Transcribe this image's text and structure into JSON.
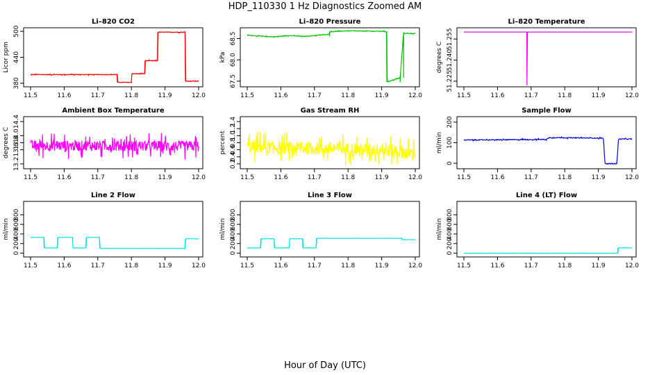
{
  "page": {
    "title": "HDP_110330  1 Hz Diagnostics Zoomed AM",
    "xlabel": "Hour of Day (UTC)"
  },
  "chart_data": [
    {
      "type": "line",
      "title": "Li–820 CO2",
      "ylabel": "Licor ppm",
      "color": "#ff0000",
      "xlim": [
        11.5,
        12.0
      ],
      "ylim": [
        375,
        505
      ],
      "xticks": [
        "11.5",
        "11.6",
        "11.7",
        "11.8",
        "11.9",
        "12.0"
      ],
      "yticks": [
        {
          "v": 380,
          "label": "380"
        },
        {
          "v": 440,
          "label": "440"
        },
        {
          "v": 500,
          "label": "500"
        }
      ],
      "noise": 1.2,
      "x": [
        11.5,
        11.758,
        11.758,
        11.8,
        11.8,
        11.84,
        11.84,
        11.878,
        11.878,
        11.96,
        11.96,
        12.0
      ],
      "y": [
        400,
        400,
        382,
        382,
        402,
        402,
        432,
        432,
        498,
        498,
        385,
        385
      ]
    },
    {
      "type": "line",
      "title": "Li–820 Pressure",
      "ylabel": "kPa",
      "color": "#00c000",
      "xlim": [
        11.5,
        12.0
      ],
      "ylim": [
        67.4,
        68.72
      ],
      "xticks": [
        "11.5",
        "11.6",
        "11.7",
        "11.8",
        "11.9",
        "12.0"
      ],
      "yticks": [
        {
          "v": 67.5,
          "label": "67.5"
        },
        {
          "v": 68.0,
          "label": "68.0"
        },
        {
          "v": 68.5,
          "label": "68.5"
        }
      ],
      "noise": 0.012,
      "x": [
        11.5,
        11.53,
        11.58,
        11.62,
        11.67,
        11.745,
        11.745,
        11.8,
        11.905,
        11.915,
        11.915,
        11.955,
        11.955,
        11.965,
        11.965,
        12.0
      ],
      "y": [
        68.58,
        68.56,
        68.54,
        68.57,
        68.55,
        68.6,
        68.66,
        68.68,
        68.67,
        68.66,
        67.48,
        67.58,
        67.58,
        68.62,
        68.62,
        68.62
      ]
    },
    {
      "type": "line",
      "title": "Li–820 Temperature",
      "ylabel": "degrees C",
      "color": "#ff00ff",
      "xlim": [
        11.5,
        12.0
      ],
      "ylim": [
        51.222,
        51.262
      ],
      "xticks": [
        "11.5",
        "11.6",
        "11.7",
        "11.8",
        "11.9",
        "12.0"
      ],
      "yticks": [
        {
          "v": 51.225,
          "label": "51.225"
        },
        {
          "v": 51.24,
          "label": "51.240"
        },
        {
          "v": 51.255,
          "label": "51.255"
        }
      ],
      "noise": 0,
      "x": [
        11.5,
        11.687,
        11.687,
        11.6875,
        11.6875,
        12.0
      ],
      "y": [
        51.26,
        51.26,
        51.222,
        51.222,
        51.26,
        51.26
      ]
    },
    {
      "type": "line",
      "title": "Ambient Box Temperature",
      "ylabel": "degrees C",
      "color": "#ff00ff",
      "xlim": [
        11.5,
        12.0
      ],
      "ylim": [
        13.1,
        14.5
      ],
      "xticks": [
        "11.5",
        "11.6",
        "11.7",
        "11.8",
        "11.9",
        "12.0"
      ],
      "yticks": [
        {
          "v": 13.2,
          "label": "13.2"
        },
        {
          "v": 13.6,
          "label": "13.6"
        },
        {
          "v": 13.8,
          "label": "13.8"
        },
        {
          "v": 14.0,
          "label": "14.0"
        },
        {
          "v": 14.4,
          "label": "14.4"
        }
      ],
      "noise": 0.25,
      "x": [
        11.5,
        12.0
      ],
      "y": [
        13.72,
        13.7
      ]
    },
    {
      "type": "line",
      "title": "Gas Stream RH",
      "ylabel": "percent",
      "color": "#ffff00",
      "xlim": [
        11.5,
        12.0
      ],
      "ylim": [
        0.1,
        1.5
      ],
      "xticks": [
        "11.5",
        "11.6",
        "11.7",
        "11.8",
        "11.9",
        "12.0"
      ],
      "yticks": [
        {
          "v": 0.2,
          "label": "0.2"
        },
        {
          "v": 0.4,
          "label": "0.4"
        },
        {
          "v": 0.6,
          "label": "0.6"
        },
        {
          "v": 0.8,
          "label": "0.8"
        },
        {
          "v": 1.0,
          "label": "1.0"
        },
        {
          "v": 1.2,
          "label": "1.2"
        },
        {
          "v": 1.4,
          "label": "1.4"
        }
      ],
      "noise": 0.3,
      "x": [
        11.5,
        11.9,
        12.0
      ],
      "y": [
        0.68,
        0.6,
        0.5
      ]
    },
    {
      "type": "line",
      "title": "Sample Flow",
      "ylabel": "ml/min",
      "color": "#0000dd",
      "xlim": [
        11.5,
        12.0
      ],
      "ylim": [
        -20,
        220
      ],
      "xticks": [
        "11.5",
        "11.6",
        "11.7",
        "11.8",
        "11.9",
        "12.0"
      ],
      "yticks": [
        {
          "v": 0,
          "label": "0"
        },
        {
          "v": 100,
          "label": "100"
        },
        {
          "v": 200,
          "label": "200"
        }
      ],
      "noise": 3,
      "x": [
        11.5,
        11.745,
        11.755,
        11.915,
        11.92,
        11.955,
        11.96,
        12.0
      ],
      "y": [
        113,
        116,
        125,
        122,
        -2,
        -2,
        118,
        118
      ]
    },
    {
      "type": "line",
      "title": "Line 2 Flow",
      "ylabel": "ml/min",
      "color": "#00e0e0",
      "xlim": [
        11.5,
        12.0
      ],
      "ylim": [
        -50,
        1050
      ],
      "xticks": [
        "11.5",
        "11.6",
        "11.7",
        "11.8",
        "11.9",
        "12.0"
      ],
      "yticks": [
        {
          "v": 0,
          "label": "0"
        },
        {
          "v": 200,
          "label": "200"
        },
        {
          "v": 400,
          "label": "400"
        },
        {
          "v": 600,
          "label": "600"
        },
        {
          "v": 800,
          "label": "800"
        }
      ],
      "noise": 2,
      "x": [
        11.5,
        11.54,
        11.54,
        11.58,
        11.58,
        11.625,
        11.625,
        11.665,
        11.665,
        11.705,
        11.705,
        11.96,
        11.96,
        12.0
      ],
      "y": [
        330,
        330,
        110,
        110,
        330,
        330,
        110,
        110,
        330,
        330,
        100,
        100,
        300,
        300
      ]
    },
    {
      "type": "line",
      "title": "Line 3 Flow",
      "ylabel": "ml/min",
      "color": "#00e0e0",
      "xlim": [
        11.5,
        12.0
      ],
      "ylim": [
        -50,
        1050
      ],
      "xticks": [
        "11.5",
        "11.6",
        "11.7",
        "11.8",
        "11.9",
        "12.0"
      ],
      "yticks": [
        {
          "v": 0,
          "label": "0"
        },
        {
          "v": 200,
          "label": "200"
        },
        {
          "v": 400,
          "label": "400"
        },
        {
          "v": 600,
          "label": "600"
        },
        {
          "v": 800,
          "label": "800"
        }
      ],
      "noise": 2,
      "x": [
        11.5,
        11.54,
        11.54,
        11.58,
        11.58,
        11.625,
        11.625,
        11.665,
        11.665,
        11.705,
        11.705,
        11.96,
        11.96,
        12.0
      ],
      "y": [
        110,
        110,
        300,
        300,
        110,
        110,
        300,
        300,
        110,
        110,
        310,
        310,
        280,
        280
      ]
    },
    {
      "type": "line",
      "title": "Line 4 (LT) Flow",
      "ylabel": "ml/min",
      "color": "#00e0e0",
      "xlim": [
        11.5,
        12.0
      ],
      "ylim": [
        -50,
        1050
      ],
      "xticks": [
        "11.5",
        "11.6",
        "11.7",
        "11.8",
        "11.9",
        "12.0"
      ],
      "yticks": [
        {
          "v": 0,
          "label": "0"
        },
        {
          "v": 200,
          "label": "200"
        },
        {
          "v": 400,
          "label": "400"
        },
        {
          "v": 600,
          "label": "600"
        },
        {
          "v": 800,
          "label": "800"
        }
      ],
      "noise": 1,
      "x": [
        11.5,
        11.958,
        11.958,
        12.0
      ],
      "y": [
        0,
        0,
        110,
        110
      ]
    }
  ]
}
